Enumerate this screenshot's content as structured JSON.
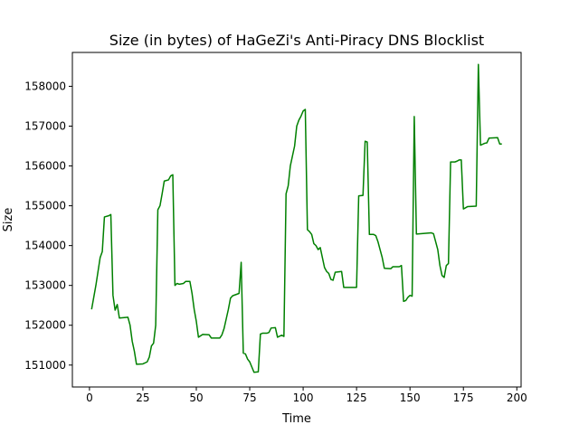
{
  "chart_data": {
    "type": "line",
    "title": "Size (in bytes) of HaGeZi's Anti-Piracy DNS Blocklist",
    "xlabel": "Time",
    "ylabel": "Size",
    "xlim": [
      -8,
      202
    ],
    "ylim": [
      150450,
      158850
    ],
    "x_ticks": [
      0,
      25,
      50,
      75,
      100,
      125,
      150,
      175,
      200
    ],
    "y_ticks": [
      151000,
      152000,
      153000,
      154000,
      155000,
      156000,
      157000,
      158000
    ],
    "grid": false,
    "series": [
      {
        "color": "#008000",
        "points": [
          [
            1,
            152400
          ],
          [
            3,
            153000
          ],
          [
            5,
            153700
          ],
          [
            6,
            153850
          ],
          [
            7,
            154720
          ],
          [
            9,
            154750
          ],
          [
            10,
            154780
          ],
          [
            11,
            152750
          ],
          [
            12,
            152380
          ],
          [
            13,
            152520
          ],
          [
            14,
            152180
          ],
          [
            18,
            152200
          ],
          [
            19,
            152000
          ],
          [
            20,
            151600
          ],
          [
            21,
            151350
          ],
          [
            22,
            151020
          ],
          [
            25,
            151030
          ],
          [
            27,
            151080
          ],
          [
            28,
            151200
          ],
          [
            29,
            151480
          ],
          [
            30,
            151550
          ],
          [
            31,
            152000
          ],
          [
            32,
            154900
          ],
          [
            33,
            155000
          ],
          [
            34,
            155300
          ],
          [
            35,
            155620
          ],
          [
            37,
            155650
          ],
          [
            38,
            155750
          ],
          [
            39,
            155780
          ],
          [
            40,
            153000
          ],
          [
            41,
            153050
          ],
          [
            42,
            153030
          ],
          [
            44,
            153050
          ],
          [
            45,
            153100
          ],
          [
            47,
            153100
          ],
          [
            48,
            152800
          ],
          [
            49,
            152400
          ],
          [
            50,
            152100
          ],
          [
            51,
            151700
          ],
          [
            53,
            151770
          ],
          [
            56,
            151760
          ],
          [
            57,
            151680
          ],
          [
            61,
            151680
          ],
          [
            62,
            151760
          ],
          [
            63,
            151920
          ],
          [
            65,
            152400
          ],
          [
            66,
            152680
          ],
          [
            67,
            152740
          ],
          [
            69,
            152780
          ],
          [
            70,
            152800
          ],
          [
            71,
            153580
          ],
          [
            72,
            151300
          ],
          [
            73,
            151280
          ],
          [
            74,
            151150
          ],
          [
            75,
            151080
          ],
          [
            76,
            150950
          ],
          [
            77,
            150820
          ],
          [
            79,
            150830
          ],
          [
            80,
            151780
          ],
          [
            81,
            151800
          ],
          [
            83,
            151800
          ],
          [
            84,
            151820
          ],
          [
            85,
            151930
          ],
          [
            87,
            151940
          ],
          [
            88,
            151700
          ],
          [
            90,
            151750
          ],
          [
            91,
            151720
          ],
          [
            92,
            155300
          ],
          [
            93,
            155500
          ],
          [
            94,
            156000
          ],
          [
            95,
            156250
          ],
          [
            96,
            156500
          ],
          [
            97,
            157000
          ],
          [
            98,
            157150
          ],
          [
            99,
            157250
          ],
          [
            100,
            157380
          ],
          [
            101,
            157420
          ],
          [
            102,
            154400
          ],
          [
            103,
            154350
          ],
          [
            104,
            154280
          ],
          [
            105,
            154050
          ],
          [
            106,
            154000
          ],
          [
            107,
            153900
          ],
          [
            108,
            153950
          ],
          [
            110,
            153450
          ],
          [
            111,
            153350
          ],
          [
            112,
            153300
          ],
          [
            113,
            153150
          ],
          [
            114,
            153130
          ],
          [
            115,
            153330
          ],
          [
            118,
            153350
          ],
          [
            119,
            152950
          ],
          [
            125,
            152950
          ],
          [
            126,
            155250
          ],
          [
            128,
            155260
          ],
          [
            129,
            156620
          ],
          [
            130,
            156600
          ],
          [
            131,
            154280
          ],
          [
            133,
            154280
          ],
          [
            134,
            154250
          ],
          [
            135,
            154100
          ],
          [
            136,
            153900
          ],
          [
            137,
            153700
          ],
          [
            138,
            153430
          ],
          [
            141,
            153420
          ],
          [
            142,
            153470
          ],
          [
            145,
            153470
          ],
          [
            146,
            153500
          ],
          [
            147,
            152600
          ],
          [
            148,
            152620
          ],
          [
            149,
            152700
          ],
          [
            150,
            152750
          ],
          [
            151,
            152730
          ],
          [
            152,
            157240
          ],
          [
            153,
            154290
          ],
          [
            160,
            154320
          ],
          [
            161,
            154300
          ],
          [
            162,
            154100
          ],
          [
            163,
            153900
          ],
          [
            164,
            153500
          ],
          [
            165,
            153250
          ],
          [
            166,
            153200
          ],
          [
            167,
            153500
          ],
          [
            168,
            153550
          ],
          [
            169,
            156100
          ],
          [
            171,
            156100
          ],
          [
            172,
            156120
          ],
          [
            173,
            156150
          ],
          [
            174,
            156150
          ],
          [
            175,
            154920
          ],
          [
            176,
            154950
          ],
          [
            177,
            154980
          ],
          [
            181,
            154990
          ],
          [
            182,
            158550
          ],
          [
            183,
            156520
          ],
          [
            185,
            156570
          ],
          [
            186,
            156580
          ],
          [
            187,
            156700
          ],
          [
            191,
            156710
          ],
          [
            192,
            156550
          ],
          [
            193,
            156550
          ]
        ]
      }
    ]
  }
}
